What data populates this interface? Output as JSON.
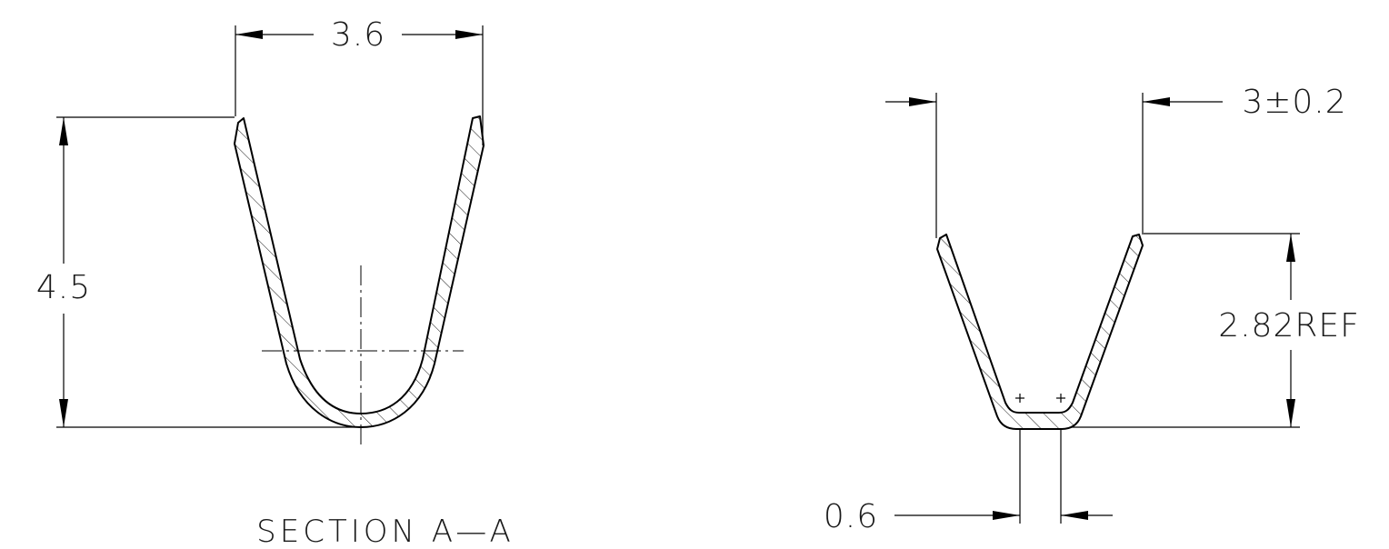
{
  "section_a": {
    "width_dim": "3.6",
    "height_dim": "4.5",
    "caption": "SECTION A—A"
  },
  "section_b": {
    "width_dim": "3±0.2",
    "height_dim": "2.82REF",
    "bottom_dim": "0.6"
  }
}
